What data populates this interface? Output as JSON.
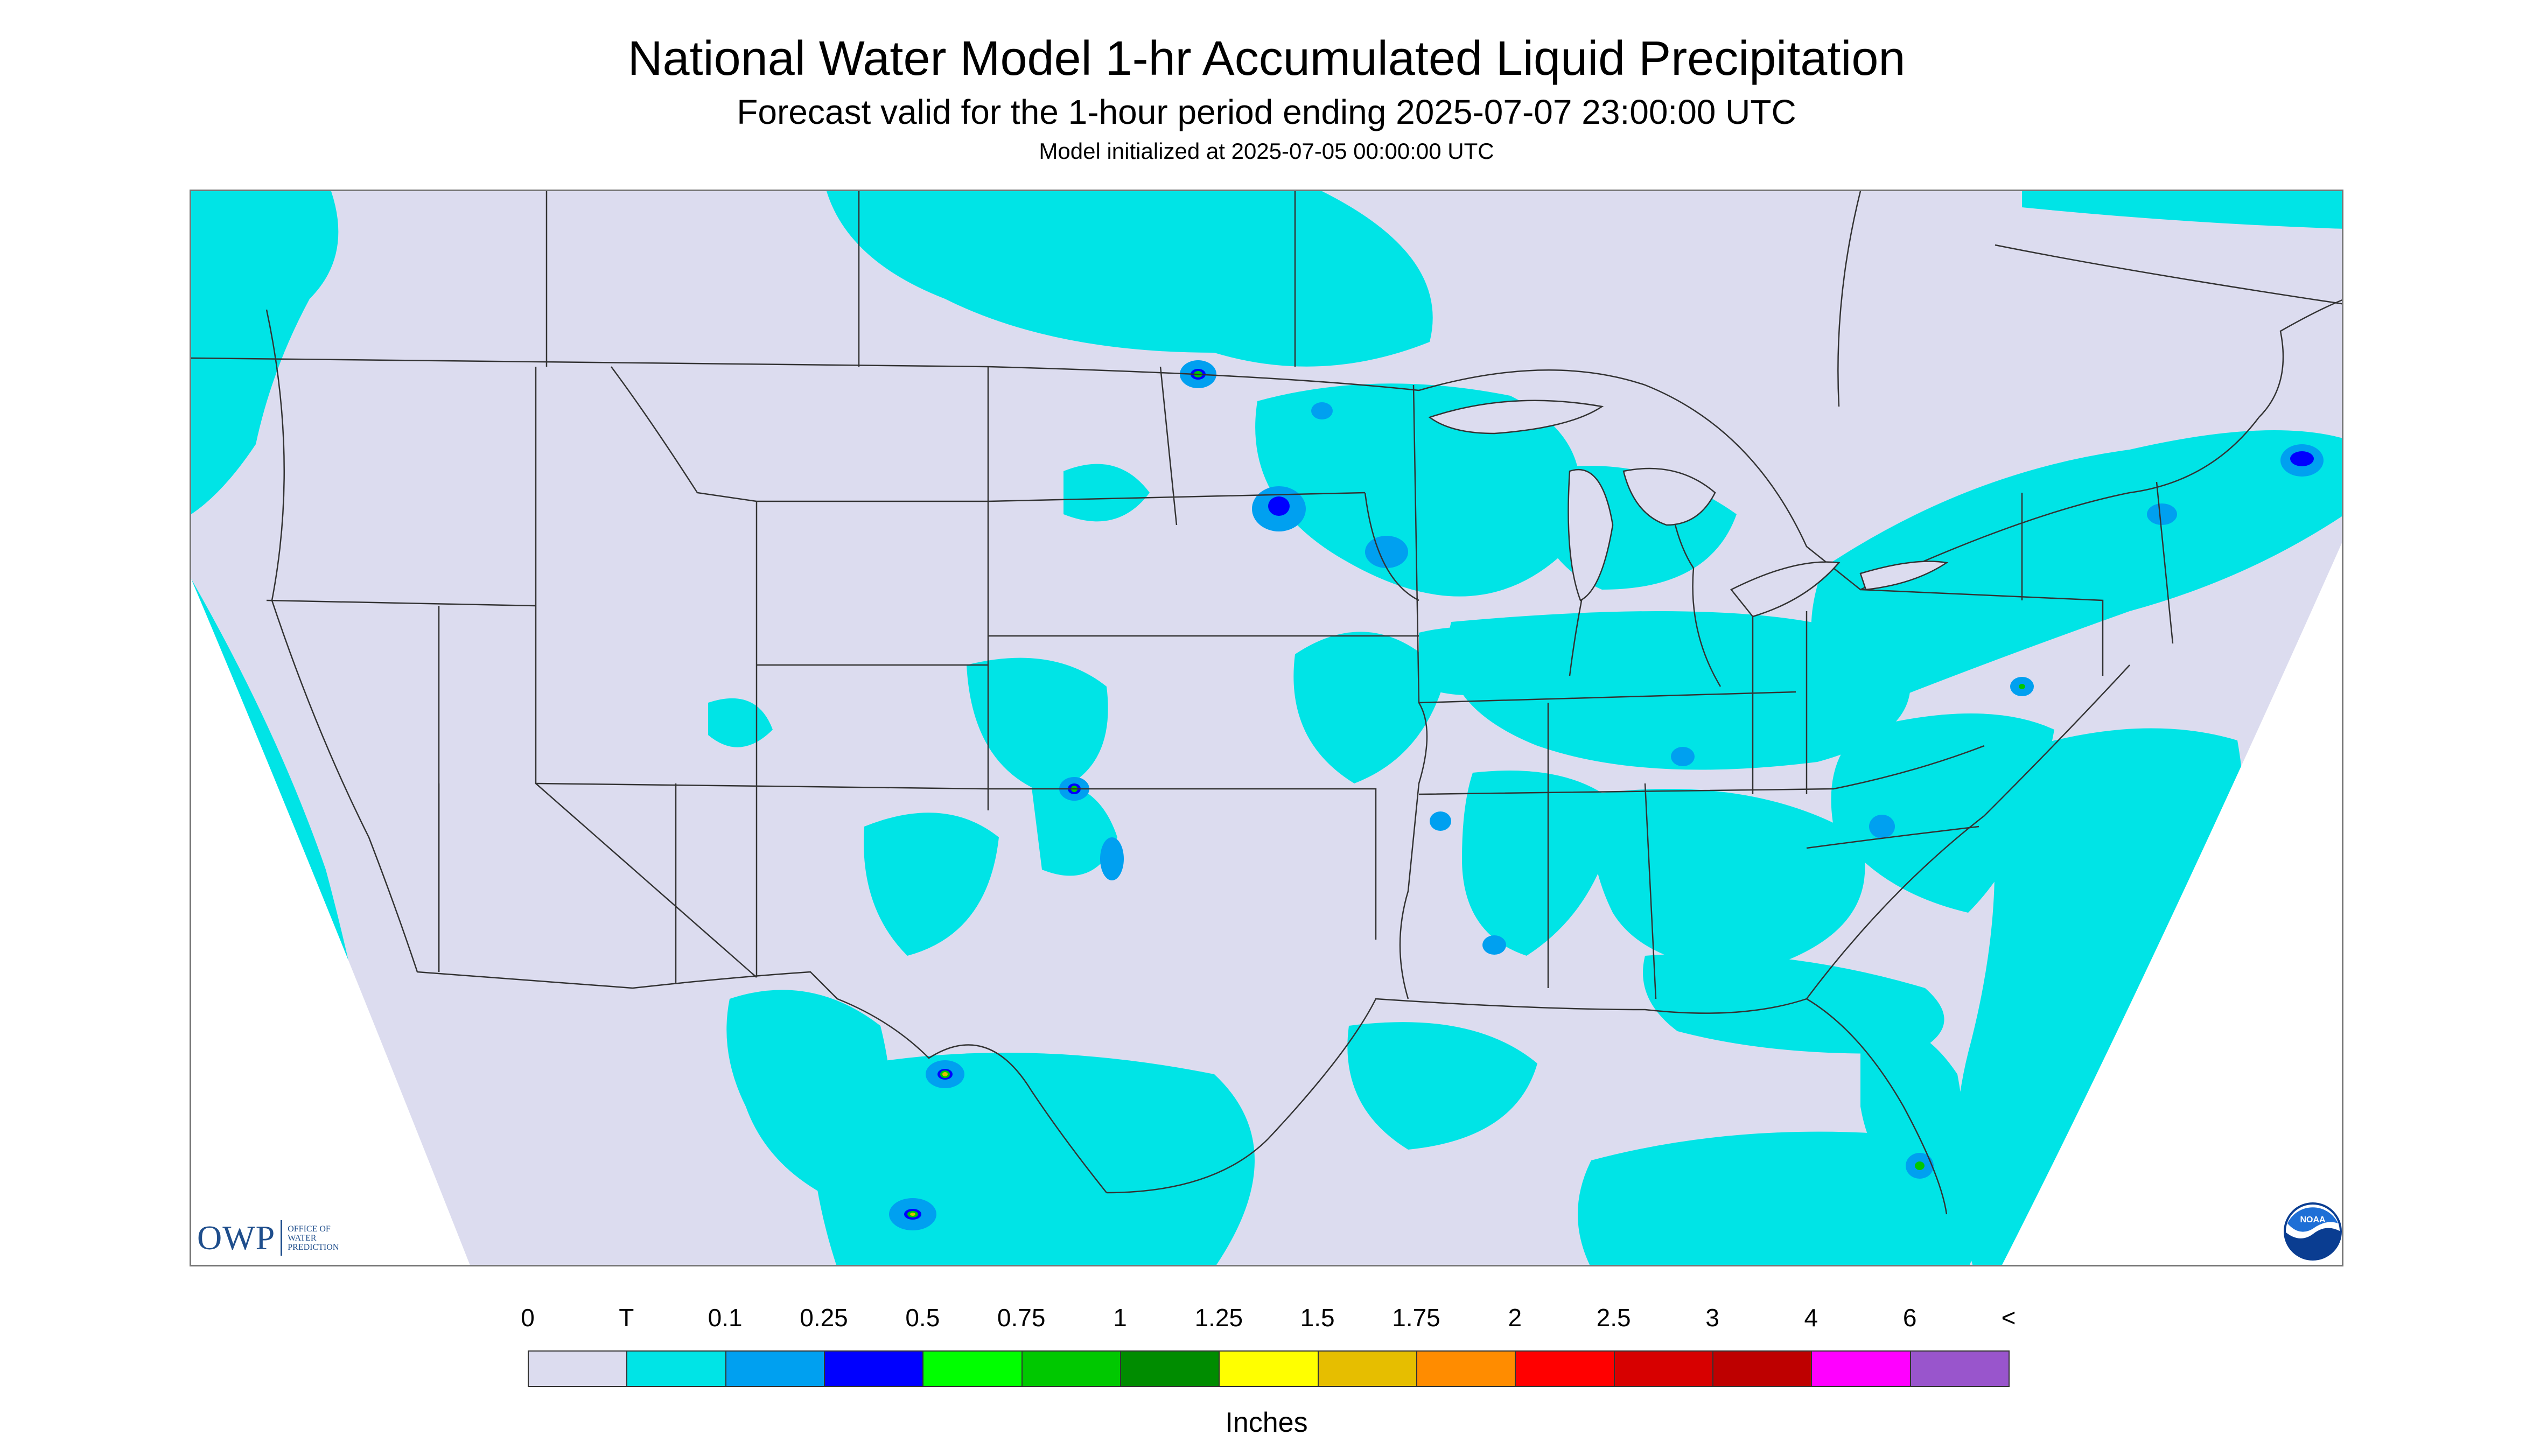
{
  "header": {
    "title": "National Water Model 1-hr Accumulated Liquid Precipitation",
    "subtitle": "Forecast valid for the 1-hour period ending 2025-07-07 23:00:00 UTC",
    "init_line": "Model initialized at 2025-07-05 00:00:00 UTC"
  },
  "logos": {
    "owp_letters": "OWP",
    "owp_line1": "OFFICE OF",
    "owp_line2": "WATER",
    "owp_line3": "PREDICTION",
    "noaa_text": "NOAA"
  },
  "legend": {
    "units": "Inches",
    "tick_labels": [
      "0",
      "T",
      "0.1",
      "0.25",
      "0.5",
      "0.75",
      "1",
      "1.25",
      "1.5",
      "1.75",
      "2",
      "2.5",
      "3",
      "4",
      "6",
      "<"
    ],
    "colors": [
      "#dcdcef",
      "#00e4e6",
      "#00a0f0",
      "#0000ff",
      "#00ff00",
      "#00c800",
      "#008c00",
      "#ffff00",
      "#e6be00",
      "#ff8c00",
      "#ff0000",
      "#d70000",
      "#be0000",
      "#ff00ff",
      "#9955cc"
    ]
  },
  "map": {
    "background_color": "#dcdcef",
    "precip_color": "#00e4e6",
    "boundary_color": "#333333",
    "heavy_colors": [
      "#00a0f0",
      "#0000ff",
      "#00ff00",
      "#e6be00"
    ]
  }
}
